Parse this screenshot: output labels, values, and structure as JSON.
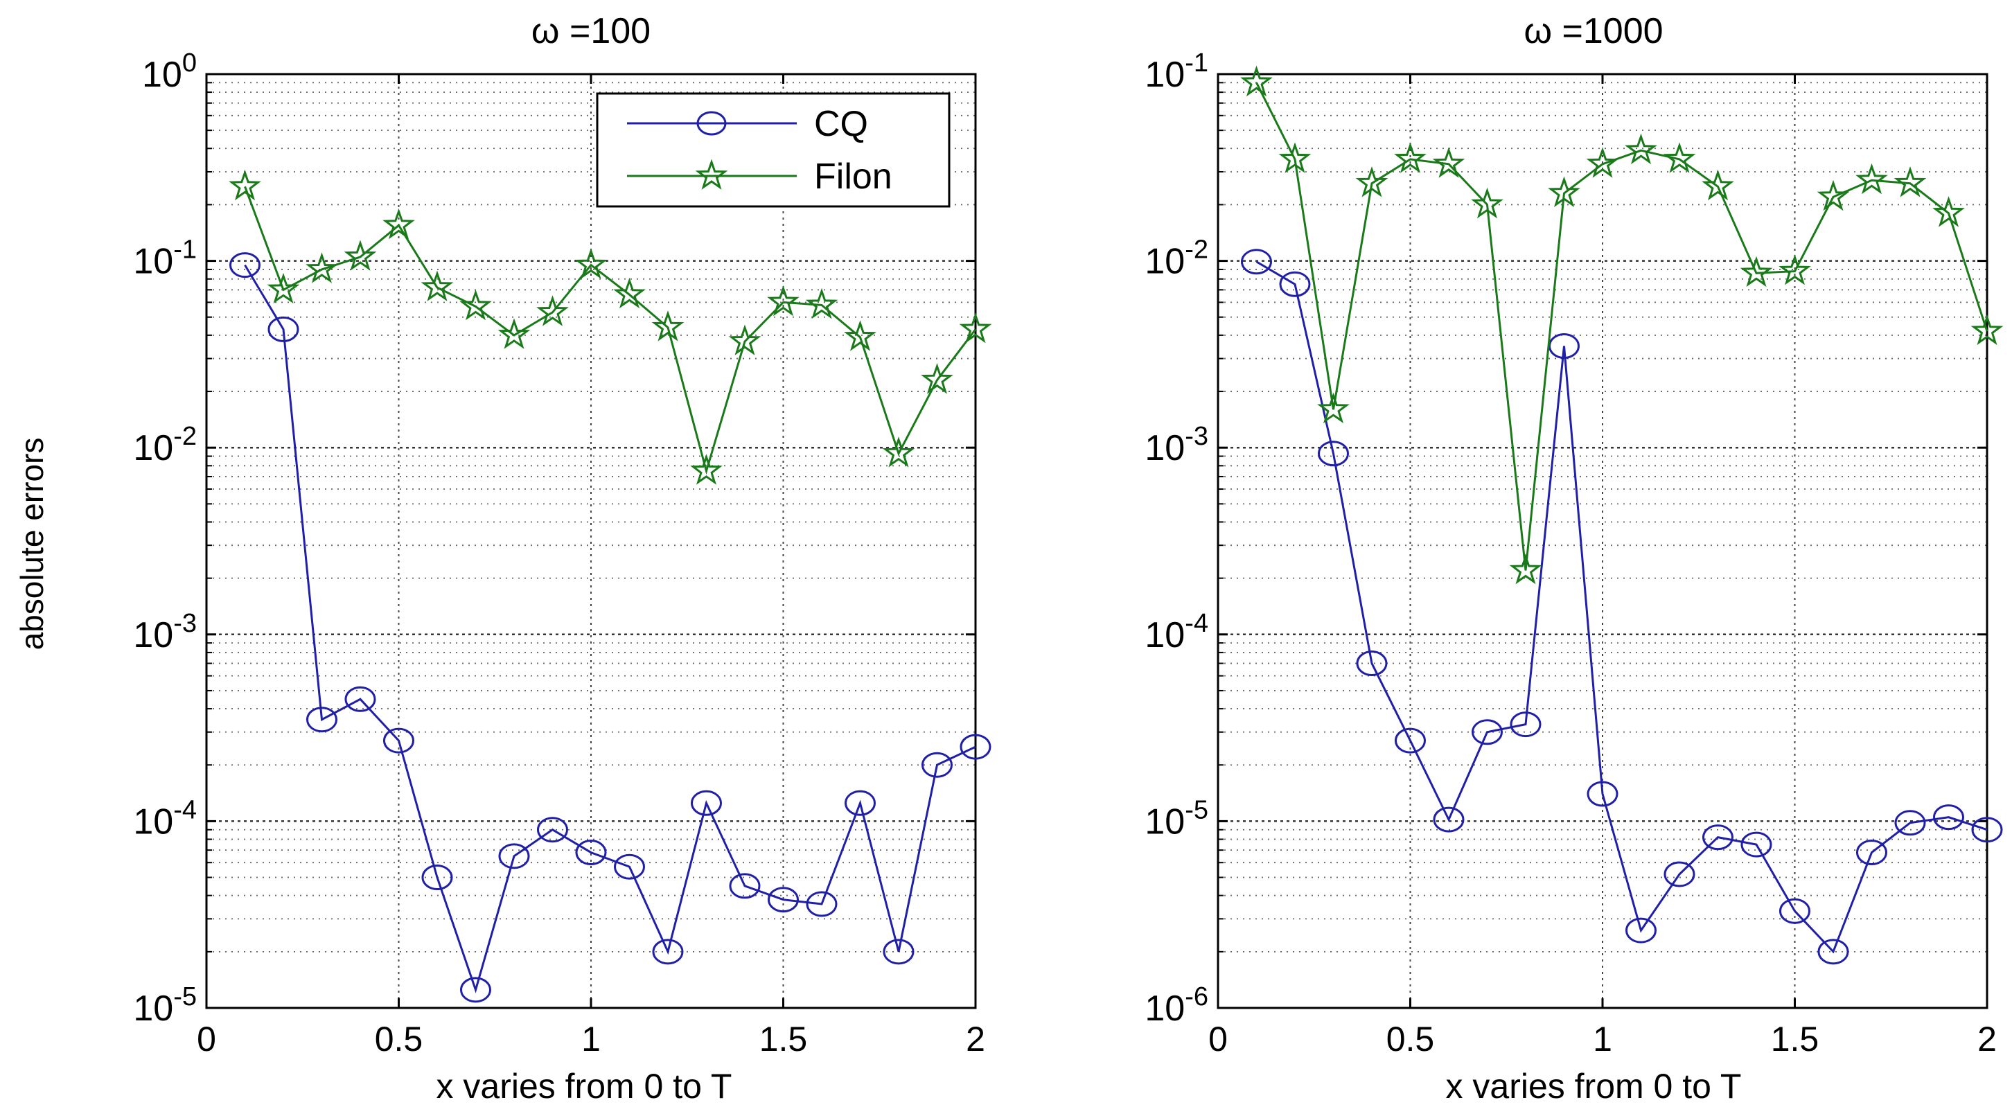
{
  "figure": {
    "ylabel": "absolute errors"
  },
  "chart_data": [
    {
      "type": "line",
      "title": "ω =100",
      "xlabel": "x varies from 0 to T",
      "ylabel": "absolute errors",
      "yscale": "log",
      "xlim": [
        0,
        2
      ],
      "ylim_exp": [
        -5,
        0
      ],
      "xticks": [
        0,
        0.5,
        1,
        1.5,
        2
      ],
      "xtick_labels": [
        "0",
        "0.5",
        "1",
        "1.5",
        "2"
      ],
      "yticks_exp": [
        -5,
        -4,
        -3,
        -2,
        -1,
        0
      ],
      "ytick_base": "10",
      "ytick_exponents": [
        "-5",
        "-4",
        "-3",
        "-2",
        "-1",
        "0"
      ],
      "grid": true,
      "legend": {
        "location": "top-right",
        "entries": [
          "CQ",
          "Filon"
        ]
      },
      "x": [
        0.1,
        0.2,
        0.3,
        0.4,
        0.5,
        0.6,
        0.7,
        0.8,
        0.9,
        1.0,
        1.1,
        1.2,
        1.3,
        1.4,
        1.5,
        1.6,
        1.7,
        1.8,
        1.9,
        2.0
      ],
      "series": [
        {
          "name": "CQ",
          "color": "#1f1fa8",
          "marker": "circle",
          "values": [
            0.095,
            0.043,
            0.00035,
            0.00045,
            0.00027,
            5e-05,
            1.25e-05,
            6.5e-05,
            9e-05,
            6.8e-05,
            5.7e-05,
            2e-05,
            0.000125,
            4.5e-05,
            3.8e-05,
            3.6e-05,
            0.000125,
            2e-05,
            0.0002,
            0.00025
          ]
        },
        {
          "name": "Filon",
          "color": "#1a7a1a",
          "marker": "star",
          "values": [
            0.25,
            0.07,
            0.09,
            0.105,
            0.155,
            0.072,
            0.057,
            0.04,
            0.053,
            0.095,
            0.066,
            0.044,
            0.0075,
            0.037,
            0.06,
            0.058,
            0.039,
            0.0093,
            0.023,
            0.043
          ]
        }
      ]
    },
    {
      "type": "line",
      "title": "ω =1000",
      "xlabel": "x varies from 0 to T",
      "ylabel": "",
      "yscale": "log",
      "xlim": [
        0,
        2
      ],
      "ylim_exp": [
        -6,
        -1
      ],
      "xticks": [
        0,
        0.5,
        1,
        1.5,
        2
      ],
      "xtick_labels": [
        "0",
        "0.5",
        "1",
        "1.5",
        "2"
      ],
      "yticks_exp": [
        -6,
        -5,
        -4,
        -3,
        -2,
        -1
      ],
      "ytick_base": "10",
      "ytick_exponents": [
        "-6",
        "-5",
        "-4",
        "-3",
        "-2",
        "-1"
      ],
      "grid": true,
      "x": [
        0.1,
        0.2,
        0.3,
        0.4,
        0.5,
        0.6,
        0.7,
        0.8,
        0.9,
        1.0,
        1.1,
        1.2,
        1.3,
        1.4,
        1.5,
        1.6,
        1.7,
        1.8,
        1.9,
        2.0
      ],
      "series": [
        {
          "name": "CQ",
          "color": "#1f1fa8",
          "marker": "circle",
          "values": [
            0.0099,
            0.0075,
            0.00093,
            7e-05,
            2.7e-05,
            1.02e-05,
            3e-05,
            3.3e-05,
            0.0035,
            1.4e-05,
            2.6e-06,
            5.2e-06,
            8.2e-06,
            7.5e-06,
            3.3e-06,
            2e-06,
            6.8e-06,
            9.8e-06,
            1.05e-05,
            9e-06
          ]
        },
        {
          "name": "Filon",
          "color": "#1a7a1a",
          "marker": "star",
          "values": [
            0.09,
            0.035,
            0.0016,
            0.026,
            0.035,
            0.033,
            0.02,
            0.00022,
            0.023,
            0.033,
            0.039,
            0.035,
            0.025,
            0.0086,
            0.0088,
            0.022,
            0.027,
            0.026,
            0.018,
            0.0042
          ]
        }
      ]
    }
  ]
}
